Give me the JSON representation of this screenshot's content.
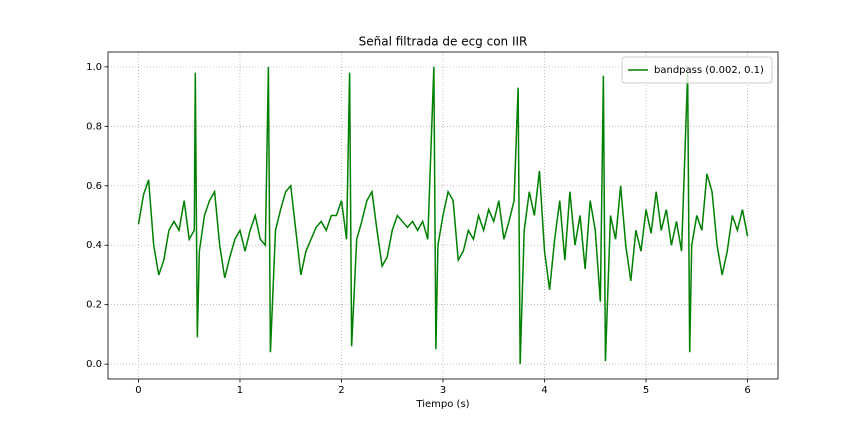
{
  "chart_data": {
    "type": "line",
    "title": "Señal filtrada de ecg con IIR",
    "x_label": "Tiempo (s)",
    "x": [
      0,
      0.05,
      0.1,
      0.15,
      0.2,
      0.25,
      0.3,
      0.35,
      0.4,
      0.45,
      0.5,
      0.55,
      0.56,
      0.58,
      0.6,
      0.65,
      0.7,
      0.75,
      0.8,
      0.85,
      0.9,
      0.95,
      1.0,
      1.05,
      1.1,
      1.15,
      1.2,
      1.25,
      1.28,
      1.3,
      1.35,
      1.4,
      1.45,
      1.5,
      1.55,
      1.6,
      1.65,
      1.7,
      1.75,
      1.8,
      1.85,
      1.9,
      1.95,
      2.0,
      2.05,
      2.08,
      2.1,
      2.15,
      2.2,
      2.25,
      2.3,
      2.35,
      2.4,
      2.45,
      2.5,
      2.55,
      2.6,
      2.65,
      2.7,
      2.75,
      2.8,
      2.85,
      2.91,
      2.93,
      2.95,
      3.0,
      3.05,
      3.1,
      3.15,
      3.2,
      3.25,
      3.3,
      3.35,
      3.4,
      3.45,
      3.5,
      3.55,
      3.6,
      3.65,
      3.7,
      3.74,
      3.76,
      3.8,
      3.85,
      3.9,
      3.95,
      4.0,
      4.05,
      4.1,
      4.15,
      4.2,
      4.25,
      4.3,
      4.35,
      4.4,
      4.45,
      4.5,
      4.55,
      4.58,
      4.6,
      4.65,
      4.7,
      4.75,
      4.8,
      4.85,
      4.9,
      4.95,
      5.0,
      5.05,
      5.1,
      5.15,
      5.2,
      5.25,
      5.3,
      5.35,
      5.41,
      5.43,
      5.45,
      5.5,
      5.55,
      5.6,
      5.65,
      5.7,
      5.75,
      5.8,
      5.85,
      5.9,
      5.95,
      6.0
    ],
    "series": [
      {
        "name": "bandpass (0.002, 0.1)",
        "color": "#008000",
        "values": [
          0.47,
          0.57,
          0.62,
          0.4,
          0.3,
          0.35,
          0.45,
          0.48,
          0.45,
          0.55,
          0.42,
          0.45,
          0.98,
          0.09,
          0.38,
          0.5,
          0.55,
          0.58,
          0.4,
          0.29,
          0.36,
          0.42,
          0.45,
          0.38,
          0.45,
          0.5,
          0.42,
          0.4,
          1.0,
          0.04,
          0.45,
          0.52,
          0.58,
          0.6,
          0.45,
          0.3,
          0.38,
          0.42,
          0.46,
          0.48,
          0.45,
          0.5,
          0.5,
          0.55,
          0.42,
          0.98,
          0.06,
          0.42,
          0.48,
          0.55,
          0.58,
          0.45,
          0.33,
          0.36,
          0.45,
          0.5,
          0.48,
          0.46,
          0.48,
          0.45,
          0.48,
          0.42,
          1.0,
          0.05,
          0.4,
          0.5,
          0.58,
          0.55,
          0.35,
          0.38,
          0.45,
          0.42,
          0.5,
          0.45,
          0.52,
          0.48,
          0.55,
          0.42,
          0.48,
          0.55,
          0.93,
          0.0,
          0.45,
          0.58,
          0.5,
          0.65,
          0.38,
          0.25,
          0.42,
          0.55,
          0.35,
          0.58,
          0.4,
          0.5,
          0.32,
          0.55,
          0.45,
          0.21,
          0.97,
          0.01,
          0.5,
          0.42,
          0.6,
          0.4,
          0.28,
          0.45,
          0.38,
          0.52,
          0.44,
          0.58,
          0.45,
          0.52,
          0.4,
          0.48,
          0.38,
          0.98,
          0.04,
          0.4,
          0.5,
          0.45,
          0.64,
          0.58,
          0.4,
          0.3,
          0.38,
          0.5,
          0.45,
          0.52,
          0.43
        ]
      }
    ],
    "xlim": [
      -0.3,
      6.3
    ],
    "ylim": [
      -0.05,
      1.05
    ],
    "xticks": [
      0,
      1,
      2,
      3,
      4,
      5,
      6
    ],
    "yticks": [
      {
        "value": 0,
        "label": "0.0"
      },
      0.2,
      0.4,
      0.6,
      0.8,
      {
        "value": 1,
        "label": "1.0"
      }
    ],
    "grid": true,
    "legend": "upper right"
  }
}
